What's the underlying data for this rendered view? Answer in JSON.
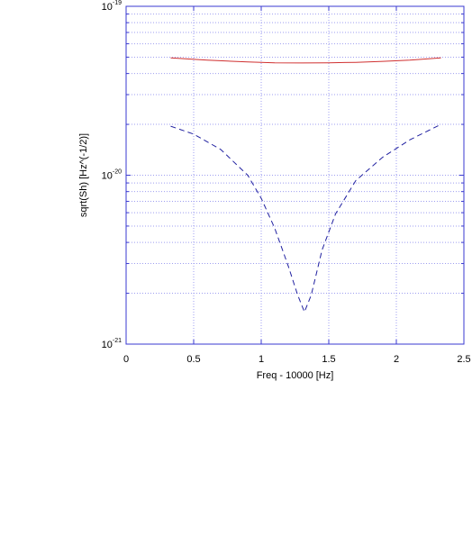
{
  "chart_data": {
    "type": "line",
    "title": "",
    "xlabel": "Freq - 10000 [Hz]",
    "ylabel": "sqrt(Sh) [Hz^(-1/2)]",
    "xlim": [
      0,
      2.5
    ],
    "ylim": [
      1e-21,
      1e-19
    ],
    "yscale": "log",
    "grid": true,
    "colors": {
      "grid": "#9e9ef0",
      "axis": "#3a3ad0",
      "series_solid": "#d03030",
      "series_dashed": "#2020a0"
    },
    "x_ticks": [
      "0",
      "0.5",
      "1",
      "1.5",
      "2",
      "2.5"
    ],
    "y_ticks": [
      {
        "mantissa": "10",
        "exp": "-19"
      },
      {
        "mantissa": "10",
        "exp": "-20"
      },
      {
        "mantissa": "10",
        "exp": "-21"
      }
    ],
    "series": [
      {
        "style": "solid",
        "x": [
          0.33,
          0.6,
          0.9,
          1.1,
          1.3,
          1.5,
          1.7,
          1.9,
          2.1,
          2.33
        ],
        "y": [
          4.95e-20,
          4.8e-20,
          4.68e-20,
          4.63e-20,
          4.62e-20,
          4.63e-20,
          4.66e-20,
          4.72e-20,
          4.8e-20,
          4.95e-20
        ]
      },
      {
        "style": "dashed",
        "x": [
          0.33,
          0.5,
          0.7,
          0.9,
          1.0,
          1.1,
          1.2,
          1.27,
          1.32,
          1.37,
          1.45,
          1.55,
          1.7,
          1.9,
          2.1,
          2.33
        ],
        "y": [
          1.95e-20,
          1.75e-20,
          1.42e-20,
          1e-20,
          7.3e-21,
          4.85e-21,
          2.9e-21,
          1.95e-21,
          1.55e-21,
          1.95e-21,
          3.6e-21,
          5.9e-21,
          9.3e-21,
          1.28e-20,
          1.62e-20,
          2e-20
        ]
      }
    ]
  }
}
